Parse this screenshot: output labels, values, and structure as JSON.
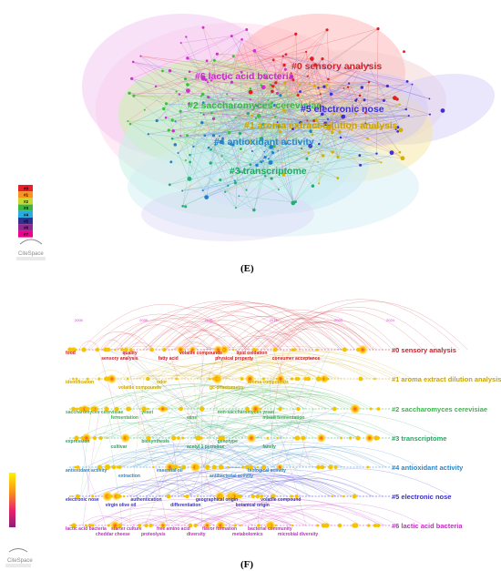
{
  "panel_e": {
    "label": "(E)",
    "clusters": [
      {
        "label": "#0 sensory analysis",
        "color": "#d8202a"
      },
      {
        "label": "#1 aroma extract dilution analysis",
        "color": "#c9a400"
      },
      {
        "label": "#2 saccharomyces cerevisiae",
        "color": "#3ab54a"
      },
      {
        "label": "#3 transcriptome",
        "color": "#20a860"
      },
      {
        "label": "#4 antioxidant activity",
        "color": "#2b86c5"
      },
      {
        "label": "#5 electronic nose",
        "color": "#3a2fd0"
      },
      {
        "label": "#6 lactic acid bacteria",
        "color": "#c42cc4"
      }
    ],
    "legend_keys": [
      "#0",
      "#1",
      "#2",
      "#3",
      "#4",
      "#5",
      "#6",
      "#7"
    ],
    "legend_colors": [
      "#e8202a",
      "#f7941d",
      "#c7d92c",
      "#39b54a",
      "#29abe2",
      "#2e3192",
      "#92278f",
      "#ec008c"
    ],
    "brand": "CiteSpace"
  },
  "panel_f": {
    "label": "(F)",
    "years": [
      "2000",
      "2005",
      "2010",
      "2015",
      "2020",
      "2024"
    ],
    "clusters": [
      {
        "label": "#0 sensory analysis",
        "color": "#c8202a",
        "terms": [
          "food",
          "sensory analysis",
          "quality",
          "fatty acid",
          "volatile compounds",
          "physical property",
          "lipid oxidation",
          "consumer acceptance"
        ]
      },
      {
        "label": "#1 aroma extract dilution analysis",
        "color": "#c9a400",
        "terms": [
          "identification",
          "volatile compounds",
          "odor",
          "gc-olfactometry",
          "aroma compounds"
        ]
      },
      {
        "label": "#2 saccharomyces cerevisiae",
        "color": "#3ab54a",
        "terms": [
          "saccharomyces cerevisiae",
          "fermentation",
          "yeast",
          "wine",
          "non-saccharomyces yeast",
          "mixed fermentation"
        ]
      },
      {
        "label": "#3 transcriptome",
        "color": "#20a860",
        "terms": [
          "expression",
          "cultivar",
          "biosynthesis",
          "acetyl 1 pyrroline",
          "genotype",
          "family"
        ]
      },
      {
        "label": "#4 antioxidant activity",
        "color": "#2b86c5",
        "terms": [
          "antioxidant activity",
          "extraction",
          "essential oil",
          "antibacterial activity",
          "biological activity"
        ]
      },
      {
        "label": "#5 electronic nose",
        "color": "#3a2fd0",
        "terms": [
          "electronic nose",
          "virgin olive oil",
          "authentication",
          "differentiation",
          "geographical origin",
          "botanical origin",
          "volatile compound"
        ]
      },
      {
        "label": "#6 lactic acid bacteria",
        "color": "#c42cc4",
        "terms": [
          "lactic acid bacteria",
          "cheddar cheese",
          "starter culture",
          "proteolysis",
          "free amino acid",
          "diversity",
          "flavor formation",
          "metabolomics",
          "bacterial community",
          "microbial diversity"
        ]
      }
    ],
    "brand": "CiteSpace"
  }
}
